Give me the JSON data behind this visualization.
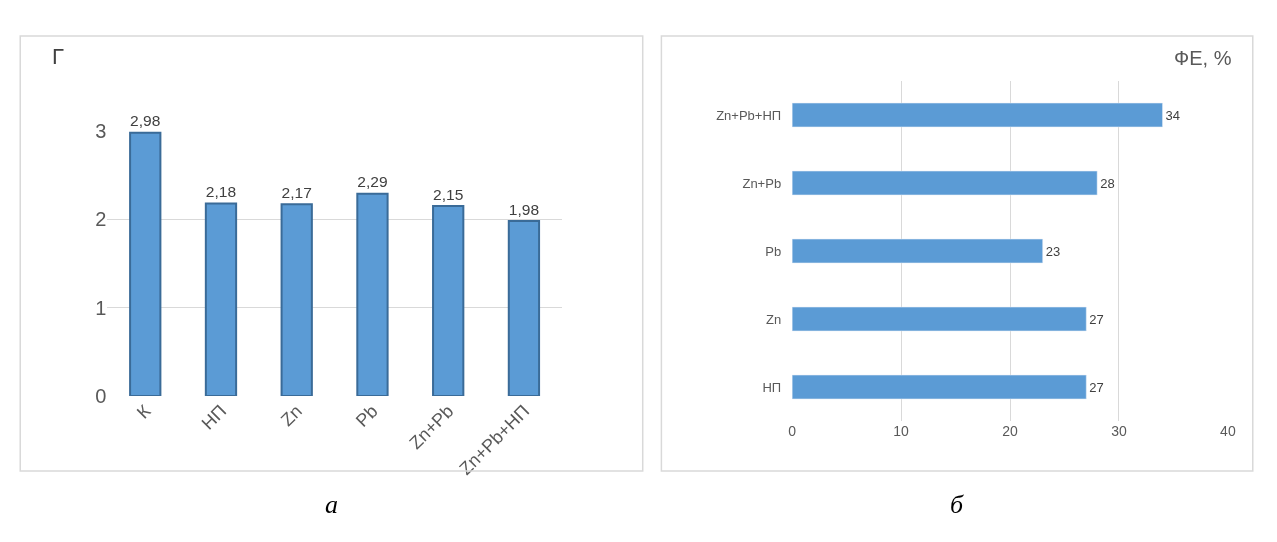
{
  "chart_data": [
    {
      "type": "bar",
      "ylabel": "Г",
      "categories": [
        "К",
        "НП",
        "Zn",
        "Pb",
        "Zn+Pb",
        "Zn+Pb+НП"
      ],
      "values": [
        2.98,
        2.18,
        2.17,
        2.29,
        2.15,
        1.98
      ],
      "value_labels": [
        "2,98",
        "2,18",
        "2,17",
        "2,29",
        "2,15",
        "1,98"
      ],
      "color": "#5b9bd5",
      "ylim": [
        0,
        3
      ],
      "yticks": [
        0,
        1,
        2,
        3
      ],
      "grid": "y",
      "annotations": [
        "а"
      ]
    },
    {
      "type": "bar",
      "orientation": "horizontal",
      "xlabel": "ФЕ, %",
      "categories": [
        "Zn+Pb+НП",
        "Zn+Pb",
        "Pb",
        "Zn",
        "НП"
      ],
      "values": [
        34,
        28,
        23,
        27,
        27
      ],
      "data_labels": true,
      "color": "#5b9bd5",
      "xlim": [
        0,
        40
      ],
      "xticks": [
        0,
        10,
        20,
        30,
        40
      ],
      "grid": "x",
      "annotations": [
        "б"
      ]
    }
  ]
}
